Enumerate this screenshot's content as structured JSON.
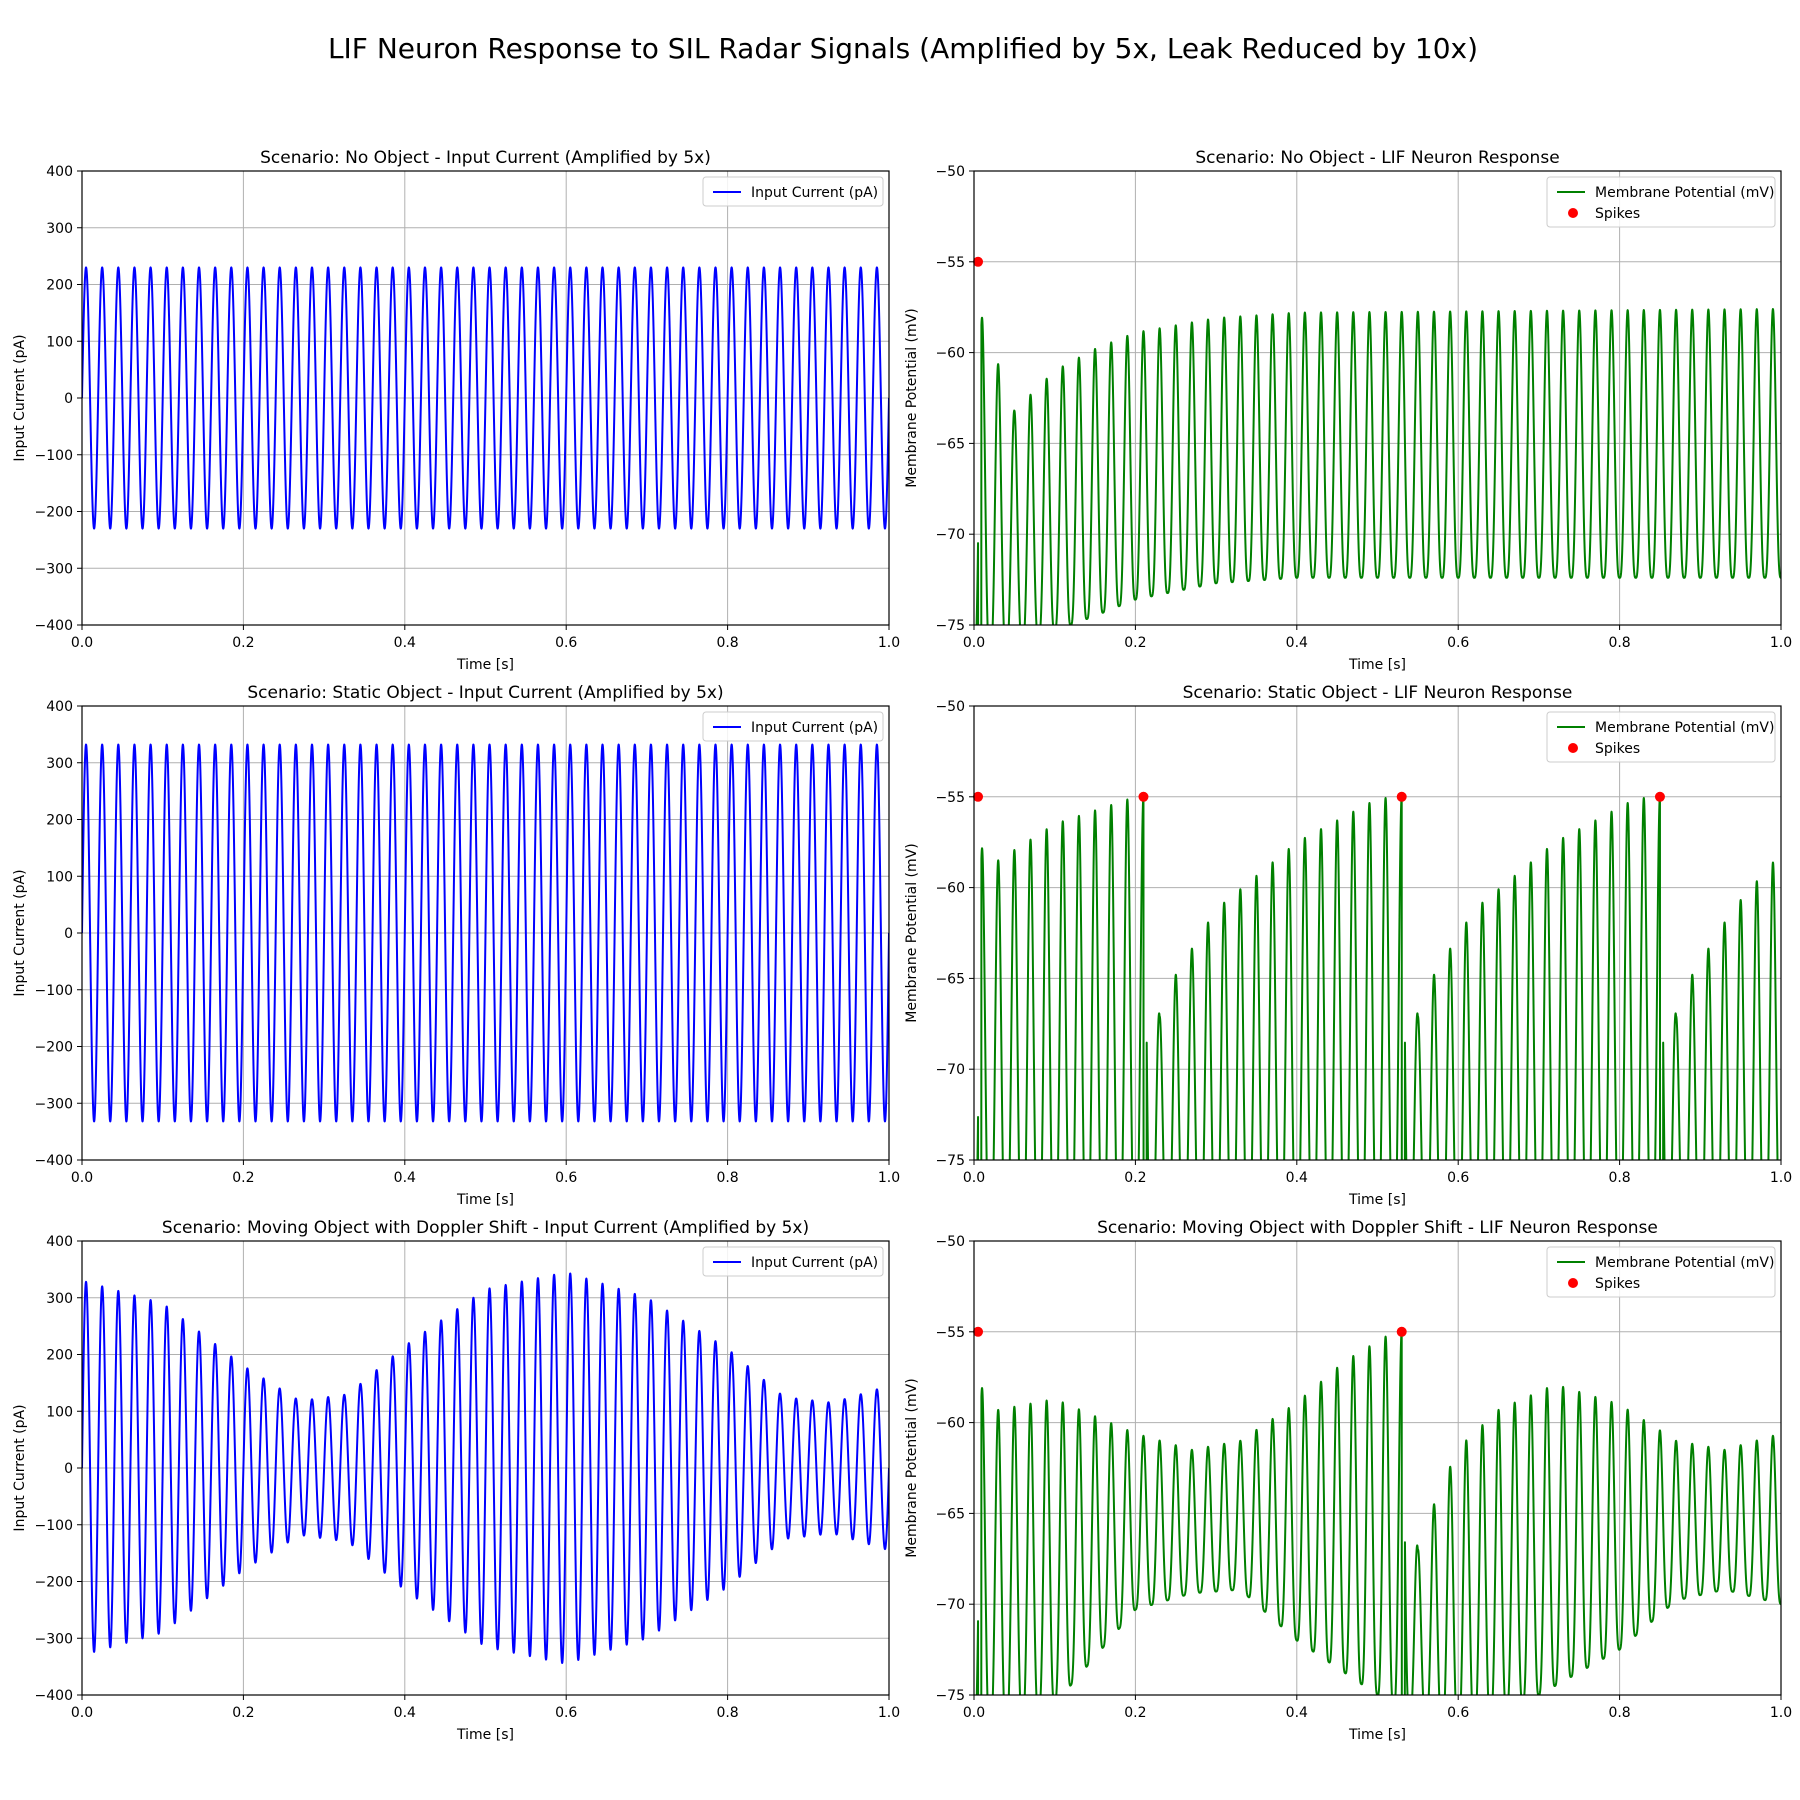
{
  "suptitle": "LIF Neuron Response to SIL Radar Signals (Amplified by 5x, Leak Reduced by 10x)",
  "colors": {
    "input": "#0000ff",
    "membrane": "#008000",
    "spike": "#ff0000",
    "grid": "#b0b0b0"
  },
  "chart_data": [
    {
      "type": "line",
      "title": "Scenario: No Object - Input Current (Amplified by 5x)",
      "xlabel": "Time [s]",
      "ylabel": "Input Current (pA)",
      "xlim": [
        0,
        1
      ],
      "ylim": [
        -400,
        400
      ],
      "xticks": [
        0.0,
        0.2,
        0.4,
        0.6,
        0.8,
        1.0
      ],
      "xticklabels": [
        "0.0",
        "0.2",
        "0.4",
        "0.6",
        "0.8",
        "1.0"
      ],
      "yticks": [
        -400,
        -300,
        -200,
        -100,
        0,
        100,
        200,
        300,
        400
      ],
      "yticklabels": [
        "−400",
        "−300",
        "−200",
        "−100",
        "0",
        "100",
        "200",
        "300",
        "400"
      ],
      "grid": true,
      "legend": "upper right",
      "series": [
        {
          "name": "Input Current (pA)",
          "kind": "sine",
          "frequency_hz": 50,
          "amplitude": 230,
          "color": "#0000ff"
        }
      ]
    },
    {
      "type": "line",
      "title": "Scenario: No Object - LIF Neuron Response",
      "xlabel": "Time [s]",
      "ylabel": "Membrane Potential (mV)",
      "xlim": [
        0,
        1
      ],
      "ylim": [
        -75,
        -50
      ],
      "xticks": [
        0.0,
        0.2,
        0.4,
        0.6,
        0.8,
        1.0
      ],
      "xticklabels": [
        "0.0",
        "0.2",
        "0.4",
        "0.6",
        "0.8",
        "1.0"
      ],
      "yticks": [
        -75,
        -70,
        -65,
        -60,
        -55,
        -50
      ],
      "yticklabels": [
        "−75",
        "−70",
        "−65",
        "−60",
        "−55",
        "−50"
      ],
      "grid": true,
      "legend": "upper right",
      "series": [
        {
          "name": "Membrane Potential (mV)",
          "kind": "lif",
          "frequency_hz": 50,
          "peak_envelope": [
            [
              0.0,
              -56.8
            ],
            [
              0.05,
              -63.2
            ],
            [
              0.1,
              -61.0
            ],
            [
              0.15,
              -59.8
            ],
            [
              0.2,
              -58.9
            ],
            [
              0.3,
              -58.1
            ],
            [
              0.4,
              -57.8
            ],
            [
              1.0,
              -57.6
            ]
          ],
          "trough_envelope": [
            [
              0.0,
              -77.0
            ],
            [
              0.15,
              -74.5
            ],
            [
              0.2,
              -73.6
            ],
            [
              0.3,
              -72.7
            ],
            [
              0.4,
              -72.4
            ],
            [
              1.0,
              -72.4
            ]
          ],
          "spike_times": [
            0.005
          ],
          "color": "#008000"
        },
        {
          "name": "Spikes",
          "kind": "scatter",
          "x": [
            0.005
          ],
          "y": [
            -55
          ],
          "color": "#ff0000"
        }
      ]
    },
    {
      "type": "line",
      "title": "Scenario: Static Object - Input Current (Amplified by 5x)",
      "xlabel": "Time [s]",
      "ylabel": "Input Current (pA)",
      "xlim": [
        0,
        1
      ],
      "ylim": [
        -400,
        400
      ],
      "xticks": [
        0.0,
        0.2,
        0.4,
        0.6,
        0.8,
        1.0
      ],
      "xticklabels": [
        "0.0",
        "0.2",
        "0.4",
        "0.6",
        "0.8",
        "1.0"
      ],
      "yticks": [
        -400,
        -300,
        -200,
        -100,
        0,
        100,
        200,
        300,
        400
      ],
      "yticklabels": [
        "−400",
        "−300",
        "−200",
        "−100",
        "0",
        "100",
        "200",
        "300",
        "400"
      ],
      "grid": true,
      "legend": "upper right",
      "series": [
        {
          "name": "Input Current (pA)",
          "kind": "sine",
          "frequency_hz": 50,
          "amplitude": 332,
          "color": "#0000ff"
        }
      ]
    },
    {
      "type": "line",
      "title": "Scenario: Static Object - LIF Neuron Response",
      "xlabel": "Time [s]",
      "ylabel": "Membrane Potential (mV)",
      "xlim": [
        0,
        1
      ],
      "ylim": [
        -75,
        -50
      ],
      "xticks": [
        0.0,
        0.2,
        0.4,
        0.6,
        0.8,
        1.0
      ],
      "xticklabels": [
        "0.0",
        "0.2",
        "0.4",
        "0.6",
        "0.8",
        "1.0"
      ],
      "yticks": [
        -75,
        -70,
        -65,
        -60,
        -55,
        -50
      ],
      "yticklabels": [
        "−75",
        "−70",
        "−65",
        "−60",
        "−55",
        "−50"
      ],
      "grid": true,
      "legend": "upper right",
      "series": [
        {
          "name": "Membrane Potential (mV)",
          "kind": "lif",
          "frequency_hz": 50,
          "peak_envelope": [
            [
              0.0,
              -57.5
            ],
            [
              0.03,
              -58.5
            ],
            [
              0.1,
              -56.5
            ],
            [
              0.2,
              -55.0
            ],
            [
              0.21,
              -55.0
            ],
            [
              0.23,
              -67.1
            ],
            [
              0.25,
              -64.8
            ],
            [
              0.3,
              -61.2
            ],
            [
              0.4,
              -57.5
            ],
            [
              0.5,
              -55.1
            ],
            [
              0.53,
              -55.0
            ],
            [
              0.55,
              -67.1
            ],
            [
              0.57,
              -64.8
            ],
            [
              0.62,
              -61.2
            ],
            [
              0.72,
              -57.5
            ],
            [
              0.82,
              -55.1
            ],
            [
              0.85,
              -55.0
            ],
            [
              0.87,
              -67.1
            ],
            [
              0.89,
              -64.8
            ],
            [
              0.94,
              -61.2
            ],
            [
              1.0,
              -58.1
            ]
          ],
          "trough_envelope": [
            [
              0.0,
              -80.0
            ],
            [
              1.0,
              -80.0
            ]
          ],
          "spike_times": [
            0.005,
            0.21,
            0.53,
            0.85
          ],
          "color": "#008000"
        },
        {
          "name": "Spikes",
          "kind": "scatter",
          "x": [
            0.005,
            0.21,
            0.53,
            0.85
          ],
          "y": [
            -55,
            -55,
            -55,
            -55
          ],
          "color": "#ff0000"
        }
      ]
    },
    {
      "type": "line",
      "title": "Scenario: Moving Object with Doppler Shift - Input Current (Amplified by 5x)",
      "xlabel": "Time [s]",
      "ylabel": "Input Current (pA)",
      "xlim": [
        0,
        1
      ],
      "ylim": [
        -400,
        400
      ],
      "xticks": [
        0.0,
        0.2,
        0.4,
        0.6,
        0.8,
        1.0
      ],
      "xticklabels": [
        "0.0",
        "0.2",
        "0.4",
        "0.6",
        "0.8",
        "1.0"
      ],
      "yticks": [
        -400,
        -300,
        -200,
        -100,
        0,
        100,
        200,
        300,
        400
      ],
      "yticklabels": [
        "−400",
        "−300",
        "−200",
        "−100",
        "0",
        "100",
        "200",
        "300",
        "400"
      ],
      "grid": true,
      "legend": "upper right",
      "series": [
        {
          "name": "Input Current (pA)",
          "kind": "beat",
          "frequency_hz": 50,
          "envelope": [
            [
              0.0,
              330
            ],
            [
              0.1,
              290
            ],
            [
              0.2,
              180
            ],
            [
              0.27,
              118
            ],
            [
              0.33,
              130
            ],
            [
              0.4,
              215
            ],
            [
              0.5,
              315
            ],
            [
              0.6,
              345
            ],
            [
              0.7,
              300
            ],
            [
              0.8,
              210
            ],
            [
              0.87,
              125
            ],
            [
              0.93,
              115
            ],
            [
              1.0,
              145
            ]
          ],
          "color": "#0000ff"
        }
      ]
    },
    {
      "type": "line",
      "title": "Scenario: Moving Object with Doppler Shift - LIF Neuron Response",
      "xlabel": "Time [s]",
      "ylabel": "Membrane Potential (mV)",
      "xlim": [
        0,
        1
      ],
      "ylim": [
        -75,
        -50
      ],
      "xticks": [
        0.0,
        0.2,
        0.4,
        0.6,
        0.8,
        1.0
      ],
      "xticklabels": [
        "0.0",
        "0.2",
        "0.4",
        "0.6",
        "0.8",
        "1.0"
      ],
      "yticks": [
        -75,
        -70,
        -65,
        -60,
        -55,
        -50
      ],
      "yticklabels": [
        "−75",
        "−70",
        "−65",
        "−60",
        "−55",
        "−50"
      ],
      "grid": true,
      "legend": "upper right",
      "series": [
        {
          "name": "Membrane Potential (mV)",
          "kind": "lif",
          "frequency_hz": 50,
          "peak_envelope": [
            [
              0.0,
              -57.5
            ],
            [
              0.03,
              -59.3
            ],
            [
              0.1,
              -58.7
            ],
            [
              0.2,
              -60.6
            ],
            [
              0.27,
              -61.5
            ],
            [
              0.33,
              -61.0
            ],
            [
              0.4,
              -58.9
            ],
            [
              0.46,
              -56.6
            ],
            [
              0.52,
              -55.0
            ],
            [
              0.53,
              -55.0
            ],
            [
              0.55,
              -67.0
            ],
            [
              0.57,
              -64.5
            ],
            [
              0.6,
              -61.4
            ],
            [
              0.65,
              -59.3
            ],
            [
              0.72,
              -57.9
            ],
            [
              0.8,
              -59.0
            ],
            [
              0.87,
              -61.0
            ],
            [
              0.93,
              -61.5
            ],
            [
              1.0,
              -60.6
            ]
          ],
          "trough_envelope": [
            [
              0.0,
              -77.5
            ],
            [
              0.1,
              -75.5
            ],
            [
              0.2,
              -70.3
            ],
            [
              0.27,
              -69.4
            ],
            [
              0.33,
              -69.2
            ],
            [
              0.4,
              -72.0
            ],
            [
              0.5,
              -75.0
            ],
            [
              0.53,
              -76.0
            ],
            [
              0.6,
              -77.0
            ],
            [
              0.7,
              -75.0
            ],
            [
              0.8,
              -72.5
            ],
            [
              0.87,
              -69.8
            ],
            [
              0.93,
              -69.2
            ],
            [
              1.0,
              -70.0
            ]
          ],
          "spike_times": [
            0.005,
            0.53
          ],
          "color": "#008000"
        },
        {
          "name": "Spikes",
          "kind": "scatter",
          "x": [
            0.005,
            0.53
          ],
          "y": [
            -55,
            -55
          ],
          "color": "#ff0000"
        }
      ]
    }
  ]
}
